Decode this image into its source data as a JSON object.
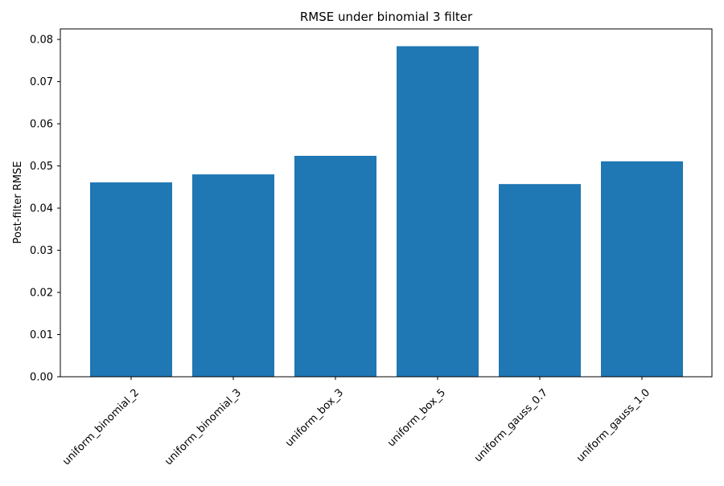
{
  "chart_data": {
    "type": "bar",
    "title": "RMSE under binomial 3 filter",
    "xlabel": "",
    "ylabel": "Post-filter RMSE",
    "categories": [
      "uniform_binomial_2",
      "uniform_binomial_3",
      "uniform_box_3",
      "uniform_box_5",
      "uniform_gauss_0.7",
      "uniform_gauss_1.0"
    ],
    "values": [
      0.0461,
      0.048,
      0.0524,
      0.0784,
      0.0457,
      0.0511
    ],
    "ylim": [
      0,
      0.0825
    ],
    "yticks": [
      "0.00",
      "0.01",
      "0.02",
      "0.03",
      "0.04",
      "0.05",
      "0.06",
      "0.07",
      "0.08"
    ],
    "grid": false,
    "legend": "none",
    "bar_color": "#1f77b4",
    "x_tick_rotation_deg": 45
  }
}
